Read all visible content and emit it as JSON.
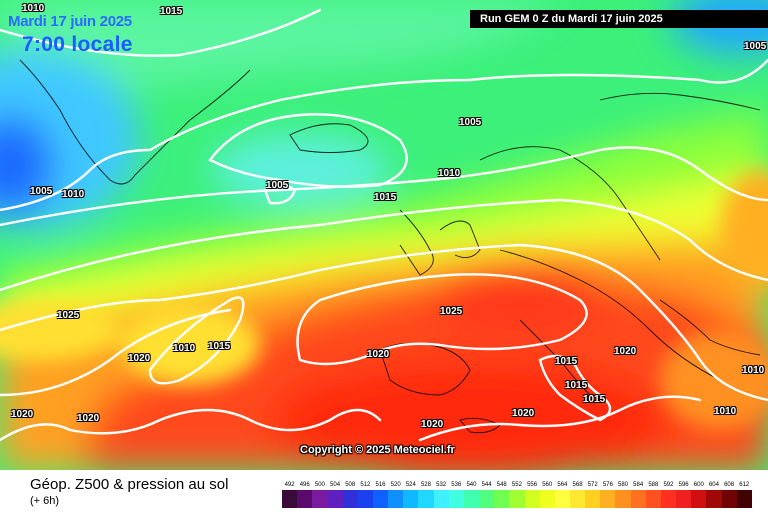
{
  "header": {
    "date": "Mardi 17 juin 2025",
    "local_time": "7:00 locale",
    "run_info": "Run GEM 0 Z du Mardi 17 juin 2025"
  },
  "copyright": "Copyright © 2025 Meteociel.fr",
  "footer": {
    "parameter": "Géop. Z500 & pression au sol",
    "lead_time": "(+ 6h)"
  },
  "isobar_labels": [
    {
      "id": "1010-tl",
      "text": "1010"
    },
    {
      "id": "1015-top",
      "text": "1015"
    },
    {
      "id": "1005-tr",
      "text": "1005"
    },
    {
      "id": "1005-atl",
      "text": "1005"
    },
    {
      "id": "1005-iceland",
      "text": "1005"
    },
    {
      "id": "1005-west",
      "text": "1005"
    },
    {
      "id": "1010-west",
      "text": "1010"
    },
    {
      "id": "1010-nsea",
      "text": "1010"
    },
    {
      "id": "1015-uk",
      "text": "1015"
    },
    {
      "id": "1025-atl",
      "text": "1025"
    },
    {
      "id": "1025-fr",
      "text": "1025"
    },
    {
      "id": "1020-atl",
      "text": "1020"
    },
    {
      "id": "1010-low",
      "text": "1010"
    },
    {
      "id": "1015-low",
      "text": "1015"
    },
    {
      "id": "1020-pt",
      "text": "1020"
    },
    {
      "id": "1020-sw",
      "text": "1020"
    },
    {
      "id": "1020-swb",
      "text": "1020"
    },
    {
      "id": "1020-balk",
      "text": "1020"
    },
    {
      "id": "1015-it",
      "text": "1015"
    },
    {
      "id": "1015-it2",
      "text": "1015"
    },
    {
      "id": "1015-it3",
      "text": "1015"
    },
    {
      "id": "1020-med",
      "text": "1020"
    },
    {
      "id": "1020-af",
      "text": "1020"
    },
    {
      "id": "1010-tk",
      "text": "1010"
    },
    {
      "id": "1010-e",
      "text": "1010"
    }
  ],
  "legend_scale": {
    "labels": [
      "492",
      "496",
      "500",
      "504",
      "508",
      "512",
      "516",
      "520",
      "524",
      "528",
      "532",
      "536",
      "540",
      "544",
      "548",
      "552",
      "556",
      "560",
      "564",
      "568",
      "572",
      "576",
      "580",
      "584",
      "588",
      "592",
      "596",
      "600",
      "604",
      "608",
      "612"
    ],
    "colors": [
      "#3a0a3a",
      "#5a0a6a",
      "#7a1aa0",
      "#6020c0",
      "#3030d8",
      "#1a40f0",
      "#1060ff",
      "#1090ff",
      "#10b8ff",
      "#20d8ff",
      "#40f0ff",
      "#40ffe0",
      "#40ffb0",
      "#50ff80",
      "#70ff50",
      "#a0ff30",
      "#d0ff20",
      "#f0ff20",
      "#ffff40",
      "#ffe830",
      "#ffd020",
      "#ffb020",
      "#ff9020",
      "#ff7020",
      "#ff5020",
      "#ff3020",
      "#f02020",
      "#d01010",
      "#a00808",
      "#700404",
      "#400202"
    ]
  },
  "colors": {
    "high_pressure": "#ff3a1a",
    "low_pressure": "#1a4cff",
    "isobar": "#ffffff"
  }
}
